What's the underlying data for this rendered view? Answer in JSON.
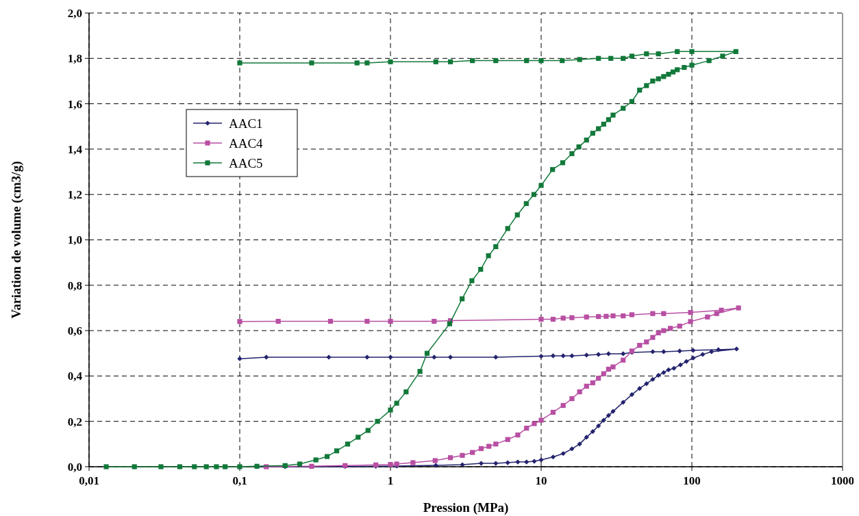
{
  "chart_data": {
    "type": "line",
    "xlabel": "Pression (MPa)",
    "ylabel": "Variation de volume (cm3/g)",
    "log": "x",
    "grid": true,
    "legend": "top left",
    "line_style": "solid",
    "xlim": [
      0.01,
      1000
    ],
    "xticks": [
      {
        "value": 0.01,
        "label": "0,01"
      },
      {
        "value": 0.1,
        "label": "0,1"
      },
      1,
      10,
      100,
      1000
    ],
    "ylim": [
      0,
      2
    ],
    "yticks": [
      {
        "value": 0,
        "label": "0,0"
      },
      {
        "value": 0.2,
        "label": "0,2"
      },
      {
        "value": 0.4,
        "label": "0,4"
      },
      {
        "value": 0.6,
        "label": "0,6"
      },
      {
        "value": 0.8,
        "label": "0,8"
      },
      {
        "value": 1,
        "label": "1,0"
      },
      {
        "value": 1.2,
        "label": "1,2"
      },
      {
        "value": 1.4,
        "label": "1,4"
      },
      {
        "value": 1.6,
        "label": "1,6"
      },
      {
        "value": 1.8,
        "label": "1,8"
      },
      {
        "value": 2,
        "label": "2,0"
      }
    ],
    "series": [
      {
        "name": "AAC1",
        "color": "#23236e",
        "marker": "diamond",
        "x": [
          0.13,
          0.2,
          0.3,
          0.5,
          0.8,
          1.1,
          2,
          3,
          4,
          5,
          6,
          7,
          8,
          9,
          10,
          12,
          14,
          16,
          18,
          20,
          22,
          24,
          26,
          28,
          30,
          35,
          40,
          45,
          50,
          55,
          60,
          65,
          70,
          76,
          84,
          92,
          102,
          118,
          135,
          198,
          150,
          102,
          83,
          65,
          55,
          40,
          35,
          28,
          24,
          20,
          16,
          14,
          12,
          10,
          5,
          2.5,
          1.95,
          1,
          0.7,
          0.39,
          0.15,
          0.1
        ],
        "values": [
          0,
          0,
          0,
          0.001,
          0.002,
          0.003,
          0.006,
          0.009,
          0.015,
          0.015,
          0.018,
          0.021,
          0.021,
          0.024,
          0.03,
          0.043,
          0.058,
          0.079,
          0.1,
          0.13,
          0.155,
          0.18,
          0.205,
          0.226,
          0.244,
          0.284,
          0.318,
          0.345,
          0.366,
          0.385,
          0.403,
          0.415,
          0.427,
          0.434,
          0.449,
          0.464,
          0.479,
          0.495,
          0.507,
          0.519,
          0.516,
          0.513,
          0.51,
          0.507,
          0.507,
          0.504,
          0.498,
          0.498,
          0.495,
          0.492,
          0.489,
          0.489,
          0.489,
          0.487,
          0.483,
          0.483,
          0.483,
          0.483,
          0.483,
          0.483,
          0.483,
          0.476
        ]
      },
      {
        "name": "AAC4",
        "color": "#b84fa3",
        "marker": "square",
        "x": [
          0.15,
          0.3,
          0.5,
          0.8,
          1,
          1.1,
          1.41,
          1.98,
          2.5,
          3,
          3.5,
          4,
          4.5,
          5,
          6,
          7,
          8,
          9,
          10,
          12,
          14,
          16,
          18,
          20,
          22,
          24,
          26,
          28,
          30,
          35,
          40,
          45,
          50,
          55,
          60,
          65,
          72,
          83,
          98,
          127,
          146,
          204,
          157,
          98,
          65,
          55,
          40,
          35,
          30,
          27,
          24,
          20,
          16,
          14,
          12,
          10,
          2.5,
          1.95,
          1,
          0.7,
          0.4,
          0.18,
          0.1
        ],
        "values": [
          0,
          0.002,
          0.005,
          0.008,
          0.01,
          0.012,
          0.018,
          0.027,
          0.04,
          0.05,
          0.063,
          0.08,
          0.09,
          0.1,
          0.12,
          0.14,
          0.17,
          0.19,
          0.205,
          0.24,
          0.27,
          0.3,
          0.33,
          0.355,
          0.37,
          0.39,
          0.41,
          0.43,
          0.44,
          0.47,
          0.51,
          0.535,
          0.55,
          0.57,
          0.59,
          0.6,
          0.61,
          0.62,
          0.64,
          0.66,
          0.675,
          0.7,
          0.69,
          0.68,
          0.675,
          0.675,
          0.67,
          0.665,
          0.665,
          0.663,
          0.662,
          0.66,
          0.657,
          0.655,
          0.65,
          0.65,
          0.644,
          0.641,
          0.641,
          0.641,
          0.641,
          0.641,
          0.64
        ]
      },
      {
        "name": "AAC5",
        "color": "#12793a",
        "marker": "square",
        "x": [
          0.013,
          0.02,
          0.03,
          0.04,
          0.05,
          0.06,
          0.07,
          0.08,
          0.1,
          0.13,
          0.2,
          0.25,
          0.32,
          0.38,
          0.44,
          0.52,
          0.61,
          0.71,
          0.82,
          1,
          1.1,
          1.27,
          1.57,
          1.75,
          2.47,
          2.99,
          3.47,
          3.97,
          4.47,
          5,
          6,
          6.95,
          7.97,
          8.95,
          10,
          11.9,
          13.9,
          16,
          17.8,
          20,
          22,
          24,
          26,
          28,
          30,
          35,
          40,
          45,
          50,
          55,
          60,
          65,
          70,
          75,
          80,
          89,
          100,
          130,
          160,
          196,
          100,
          80,
          60,
          50,
          40,
          35,
          29,
          24,
          18,
          13.8,
          10,
          8,
          5,
          3.5,
          2.5,
          2,
          1,
          0.7,
          0.6,
          0.3,
          0.1
        ],
        "values": [
          0,
          0,
          0,
          0,
          0,
          0,
          0,
          0,
          0,
          0.002,
          0.005,
          0.012,
          0.03,
          0.045,
          0.07,
          0.1,
          0.13,
          0.16,
          0.2,
          0.25,
          0.28,
          0.33,
          0.42,
          0.5,
          0.63,
          0.74,
          0.82,
          0.87,
          0.93,
          0.97,
          1.05,
          1.11,
          1.16,
          1.2,
          1.24,
          1.31,
          1.34,
          1.38,
          1.41,
          1.44,
          1.47,
          1.49,
          1.51,
          1.53,
          1.55,
          1.58,
          1.61,
          1.66,
          1.68,
          1.7,
          1.71,
          1.72,
          1.73,
          1.74,
          1.75,
          1.76,
          1.77,
          1.79,
          1.81,
          1.83,
          1.83,
          1.83,
          1.82,
          1.82,
          1.81,
          1.8,
          1.8,
          1.8,
          1.795,
          1.79,
          1.79,
          1.79,
          1.79,
          1.79,
          1.785,
          1.785,
          1.785,
          1.78,
          1.78,
          1.78,
          1.78
        ]
      }
    ]
  }
}
